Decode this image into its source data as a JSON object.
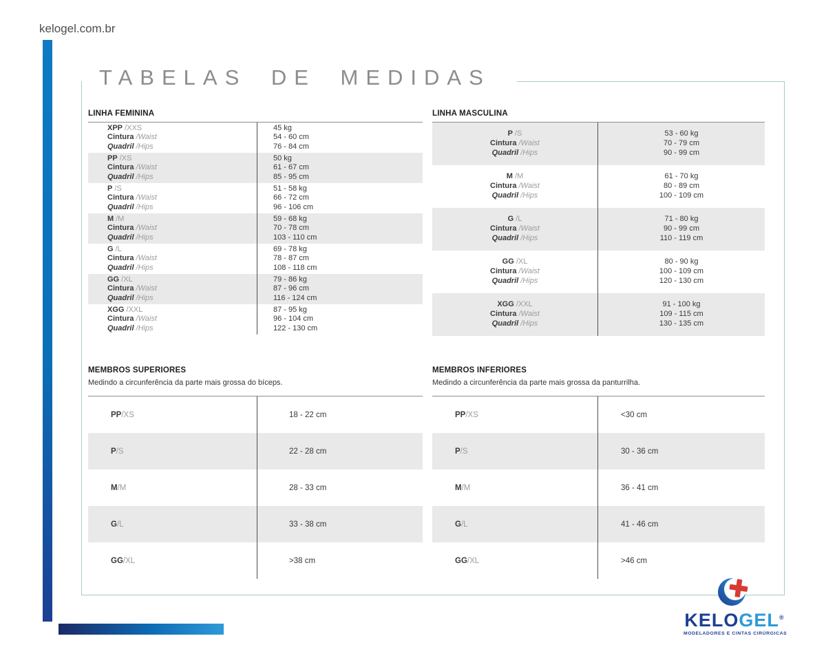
{
  "page": {
    "site_url": "kelogel.com.br",
    "title": "TABELAS DE MEDIDAS"
  },
  "colors": {
    "accent_blue": "#0d74bb",
    "navy": "#1c3f94",
    "logo_light_blue": "#2e9ad8",
    "logo_red": "#d63c34",
    "frame_border": "#abc8c8",
    "row_alt": "#e9e9e9"
  },
  "measure_labels": {
    "waist_pt": "Cintura",
    "waist_en": "/Waist",
    "hips_pt": "Quadril",
    "hips_en": "/Hips"
  },
  "linha_feminina": {
    "heading": "LINHA FEMININA",
    "rows": [
      {
        "size": "XPP",
        "size_en": "/XXS",
        "weight": "45 kg",
        "waist": "54 - 60 cm",
        "hips": "76 - 84 cm"
      },
      {
        "size": "PP",
        "size_en": "/XS",
        "weight": "50 kg",
        "waist": "61 - 67 cm",
        "hips": "85 - 95 cm"
      },
      {
        "size": "P",
        "size_en": "/S",
        "weight": "51 - 58 kg",
        "waist": "66 - 72 cm",
        "hips": "96 - 106 cm"
      },
      {
        "size": "M",
        "size_en": "/M",
        "weight": "59 - 68 kg",
        "waist": "70 - 78 cm",
        "hips": "103 - 110 cm"
      },
      {
        "size": "G",
        "size_en": "/L",
        "weight": "69 - 78 kg",
        "waist": "78 - 87 cm",
        "hips": "108 - 118 cm"
      },
      {
        "size": "GG",
        "size_en": "/XL",
        "weight": "79 - 86 kg",
        "waist": "87 - 96 cm",
        "hips": "116 - 124 cm"
      },
      {
        "size": "XGG",
        "size_en": "/XXL",
        "weight": "87 - 95 kg",
        "waist": "96 - 104 cm",
        "hips": "122 - 130 cm"
      }
    ]
  },
  "linha_masculina": {
    "heading": "LINHA MASCULINA",
    "rows": [
      {
        "size": "P",
        "size_en": "/S",
        "weight": "53 - 60 kg",
        "waist": "70 - 79 cm",
        "hips": "90 - 99 cm"
      },
      {
        "size": "M",
        "size_en": "/M",
        "weight": "61 - 70 kg",
        "waist": "80 - 89 cm",
        "hips": "100 - 109 cm"
      },
      {
        "size": "G",
        "size_en": "/L",
        "weight": "71 - 80 kg",
        "waist": "90 - 99 cm",
        "hips": "110 - 119 cm"
      },
      {
        "size": "GG",
        "size_en": "/XL",
        "weight": "80 - 90 kg",
        "waist": "100 - 109 cm",
        "hips": "120 - 130 cm"
      },
      {
        "size": "XGG",
        "size_en": "/XXL",
        "weight": "91 - 100 kg",
        "waist": "109 - 115 cm",
        "hips": "130 - 135 cm"
      }
    ]
  },
  "membros_superiores": {
    "heading": "MEMBROS SUPERIORES",
    "subtitle": "Medindo a circunferência da parte mais grossa do bíceps.",
    "rows": [
      {
        "size": "PP",
        "size_en": "/XS",
        "value": "18 - 22 cm"
      },
      {
        "size": "P",
        "size_en": "/S",
        "value": "22 - 28 cm"
      },
      {
        "size": "M",
        "size_en": "/M",
        "value": "28 - 33 cm"
      },
      {
        "size": "G",
        "size_en": "/L",
        "value": "33 - 38 cm"
      },
      {
        "size": "GG",
        "size_en": "/XL",
        "value": ">38 cm"
      }
    ]
  },
  "membros_inferiores": {
    "heading": "MEMBROS INFERIORES",
    "subtitle": "Medindo a circunferência da parte mais grossa da panturrilha.",
    "rows": [
      {
        "size": "PP",
        "size_en": "/XS",
        "value": "<30 cm"
      },
      {
        "size": "P",
        "size_en": "/S",
        "value": "30 - 36 cm"
      },
      {
        "size": "M",
        "size_en": "/M",
        "value": "36 - 41 cm"
      },
      {
        "size": "G",
        "size_en": "/L",
        "value": "41 - 46 cm"
      },
      {
        "size": "GG",
        "size_en": "/XL",
        "value": ">46 cm"
      }
    ]
  },
  "logo": {
    "brand_part1": "KELO",
    "brand_part2": "GEL",
    "registered": "®",
    "tagline": "MODELADORES E CINTAS CIRÚRGICAS"
  }
}
